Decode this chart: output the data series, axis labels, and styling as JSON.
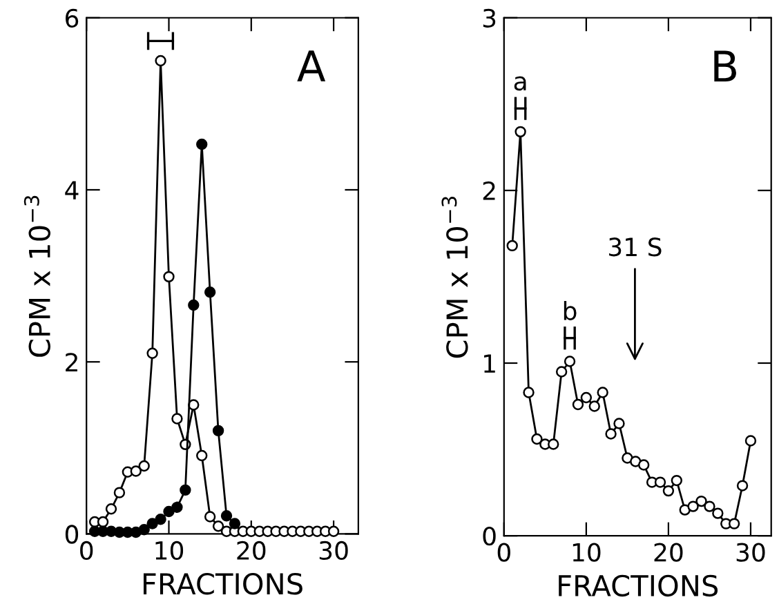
{
  "chart_data": [
    {
      "type": "line",
      "xlabel": "FRACTIONS",
      "ylabel": "CPM x 10$^{−3}$",
      "xlim": [
        0,
        33
      ],
      "ylim": [
        0,
        6
      ],
      "xticks": [
        0,
        10,
        20,
        30
      ],
      "yticks": [
        0,
        2,
        4,
        6
      ],
      "marker": "circle",
      "grid": false,
      "legend": false,
      "x": [
        1,
        2,
        3,
        4,
        5,
        6,
        7,
        8,
        9,
        10,
        11,
        12,
        13,
        14,
        15,
        16,
        17,
        18,
        19,
        20,
        21,
        22,
        23,
        24,
        25,
        26,
        27,
        28,
        29,
        30
      ],
      "annotations": [
        "A"
      ],
      "series": [
        {
          "color": "#ffffff",
          "values": [
            0.14,
            0.14,
            0.29,
            0.48,
            0.72,
            0.73,
            0.79,
            2.1,
            5.5,
            2.99,
            1.34,
            1.04,
            1.5,
            0.91,
            0.2,
            0.09,
            0.03,
            0.03,
            0.03,
            0.03,
            0.03,
            0.03,
            0.03,
            0.03,
            0.03,
            0.03,
            0.03,
            0.03,
            0.03,
            0.03
          ]
        },
        {
          "color": "#000000",
          "values": [
            0.03,
            0.03,
            0.03,
            0.02,
            0.02,
            0.02,
            0.05,
            0.12,
            0.17,
            0.26,
            0.31,
            0.51,
            2.66,
            4.53,
            2.81,
            1.2,
            0.21,
            0.12,
            null,
            null,
            null,
            null,
            null,
            null,
            null,
            null,
            null,
            null,
            null,
            null
          ]
        }
      ]
    },
    {
      "type": "line",
      "xlabel": "FRACTIONS",
      "ylabel": "CPM x 10$^{−3}$",
      "xlim": [
        0,
        32.5
      ],
      "ylim": [
        0,
        3
      ],
      "xticks": [
        0,
        10,
        20,
        30
      ],
      "yticks": [
        0,
        1,
        2,
        3
      ],
      "marker": "circle",
      "grid": false,
      "legend": false,
      "x": [
        1,
        2,
        3,
        4,
        5,
        6,
        7,
        8,
        9,
        10,
        11,
        12,
        13,
        14,
        15,
        16,
        17,
        18,
        19,
        20,
        21,
        22,
        23,
        24,
        25,
        26,
        27,
        28,
        29,
        30
      ],
      "annotations": [
        "B",
        {
          "text": "a",
          "x": 2,
          "y": 2.34
        },
        {
          "text": "b",
          "x": 8,
          "y": 1.01
        },
        "31 S"
      ],
      "series": [
        {
          "color": "#ffffff",
          "values": [
            1.68,
            2.34,
            0.83,
            0.56,
            0.53,
            0.53,
            0.95,
            1.01,
            0.76,
            0.8,
            0.75,
            0.83,
            0.59,
            0.65,
            0.45,
            0.43,
            0.41,
            0.31,
            0.31,
            0.26,
            0.32,
            0.15,
            0.17,
            0.2,
            0.17,
            0.13,
            0.07,
            0.07,
            0.29,
            0.55
          ]
        }
      ]
    }
  ]
}
